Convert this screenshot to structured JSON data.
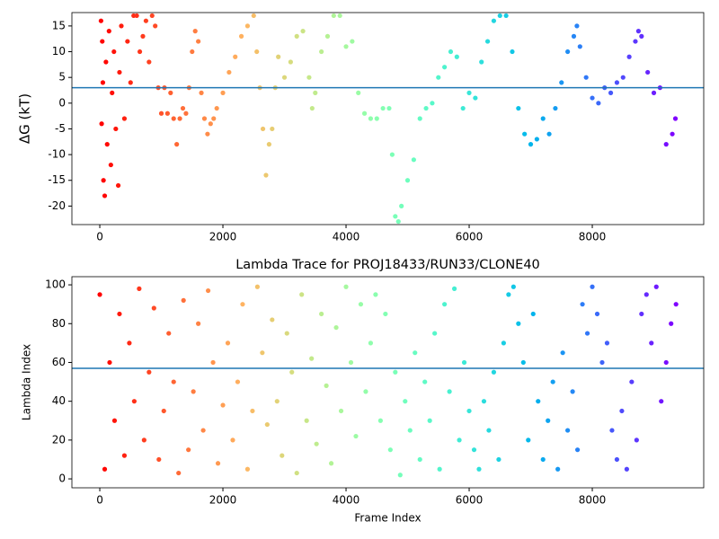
{
  "chart_data": [
    {
      "type": "scatter",
      "ylabel": "ΔG (kT)",
      "colormap": "rainbow_r",
      "hline": 3,
      "hline_color": "#1f77b4",
      "x": [
        20,
        30,
        40,
        50,
        60,
        80,
        100,
        120,
        150,
        180,
        200,
        230,
        260,
        300,
        320,
        350,
        400,
        450,
        500,
        550,
        600,
        650,
        700,
        750,
        800,
        850,
        900,
        950,
        1000,
        1050,
        1100,
        1150,
        1200,
        1250,
        1300,
        1350,
        1400,
        1450,
        1500,
        1550,
        1600,
        1650,
        1700,
        1750,
        1800,
        1850,
        1900,
        2000,
        2100,
        2200,
        2300,
        2400,
        2500,
        2550,
        2600,
        2650,
        2700,
        2750,
        2800,
        2850,
        2900,
        3000,
        3100,
        3200,
        3300,
        3400,
        3450,
        3500,
        3600,
        3700,
        3800,
        3900,
        4000,
        4100,
        4200,
        4300,
        4400,
        4500,
        4600,
        4700,
        4750,
        4800,
        4850,
        4900,
        5000,
        5100,
        5200,
        5300,
        5400,
        5500,
        5600,
        5700,
        5800,
        5900,
        6000,
        6100,
        6200,
        6300,
        6400,
        6500,
        6600,
        6700,
        6800,
        6900,
        7000,
        7100,
        7200,
        7300,
        7400,
        7500,
        7600,
        7700,
        7750,
        7800,
        7900,
        8000,
        8100,
        8200,
        8300,
        8400,
        8500,
        8600,
        8700,
        8750,
        8800,
        8900,
        9000,
        9100,
        9200,
        9300,
        9350
      ],
      "values": [
        16,
        -4,
        12,
        4,
        -15,
        -18,
        8,
        -8,
        14,
        -12,
        2,
        10,
        -5,
        -16,
        6,
        15,
        -3,
        12,
        4,
        17,
        17,
        10,
        13,
        16,
        8,
        17,
        15,
        3,
        -2,
        3,
        -2,
        2,
        -3,
        -8,
        -3,
        -1,
        -2,
        3,
        10,
        14,
        12,
        2,
        -3,
        -6,
        -4,
        -3,
        -1,
        2,
        6,
        9,
        13,
        15,
        17,
        10,
        3,
        -5,
        -14,
        -8,
        -5,
        3,
        9,
        5,
        8,
        13,
        14,
        5,
        -1,
        2,
        10,
        13,
        17,
        17,
        11,
        12,
        2,
        -2,
        -3,
        -3,
        -1,
        -1,
        -10,
        -22,
        -23,
        -20,
        -15,
        -11,
        -3,
        -1,
        0,
        5,
        7,
        10,
        9,
        -1,
        2,
        1,
        8,
        12,
        16,
        17,
        17,
        10,
        -1,
        -6,
        -8,
        -7,
        -3,
        -6,
        -1,
        4,
        10,
        13,
        15,
        11,
        5,
        1,
        0,
        3,
        2,
        4,
        5,
        9,
        12,
        14,
        13,
        6,
        2,
        3,
        -8,
        -6,
        -3
      ],
      "xlim": [
        -453,
        9810
      ],
      "xticks": [
        0,
        2000,
        4000,
        6000,
        8000
      ],
      "ylim": [
        -23.6,
        17.6
      ],
      "yticks": [
        -20,
        -15,
        -10,
        -5,
        0,
        5,
        10,
        15
      ]
    },
    {
      "type": "scatter",
      "title": "Lambda Trace for PROJ18433/RUN33/CLONE40",
      "xlabel": "Frame Index",
      "ylabel": "Lambda Index",
      "colormap": "rainbow_r",
      "hline": 57,
      "hline_color": "#1f77b4",
      "x": [
        0,
        80,
        160,
        240,
        320,
        400,
        480,
        560,
        640,
        720,
        800,
        880,
        960,
        1040,
        1120,
        1200,
        1280,
        1360,
        1440,
        1520,
        1600,
        1680,
        1760,
        1840,
        1920,
        2000,
        2080,
        2160,
        2240,
        2320,
        2400,
        2480,
        2560,
        2640,
        2720,
        2800,
        2880,
        2960,
        3040,
        3120,
        3200,
        3280,
        3360,
        3440,
        3520,
        3600,
        3680,
        3760,
        3840,
        3920,
        4000,
        4080,
        4160,
        4240,
        4320,
        4400,
        4480,
        4560,
        4640,
        4720,
        4800,
        4880,
        4960,
        5040,
        5120,
        5200,
        5280,
        5360,
        5440,
        5520,
        5600,
        5680,
        5760,
        5840,
        5920,
        6000,
        6080,
        6160,
        6240,
        6320,
        6400,
        6480,
        6560,
        6640,
        6720,
        6800,
        6880,
        6960,
        7040,
        7120,
        7200,
        7280,
        7360,
        7440,
        7520,
        7600,
        7680,
        7760,
        7840,
        7920,
        8000,
        8080,
        8160,
        8240,
        8320,
        8400,
        8480,
        8560,
        8640,
        8720,
        8800,
        8880,
        8960,
        9040,
        9120,
        9200,
        9280,
        9360
      ],
      "values": [
        95,
        5,
        60,
        30,
        85,
        12,
        70,
        40,
        98,
        20,
        55,
        88,
        10,
        35,
        75,
        50,
        3,
        92,
        15,
        45,
        80,
        25,
        97,
        60,
        8,
        38,
        70,
        20,
        50,
        90,
        5,
        35,
        99,
        65,
        28,
        82,
        40,
        12,
        75,
        55,
        3,
        95,
        30,
        62,
        18,
        85,
        48,
        8,
        78,
        35,
        99,
        60,
        22,
        90,
        45,
        70,
        95,
        30,
        85,
        15,
        55,
        2,
        40,
        25,
        65,
        10,
        50,
        30,
        75,
        5,
        90,
        45,
        98,
        20,
        60,
        35,
        15,
        5,
        40,
        25,
        55,
        10,
        70,
        95,
        99,
        80,
        60,
        20,
        85,
        40,
        10,
        30,
        50,
        5,
        65,
        25,
        45,
        15,
        90,
        75,
        99,
        85,
        60,
        70,
        25,
        10,
        35,
        5,
        50,
        20,
        85,
        95,
        70,
        99,
        40,
        60,
        80,
        90
      ],
      "xlim": [
        -453,
        9810
      ],
      "xticks": [
        0,
        2000,
        4000,
        6000,
        8000
      ],
      "ylim": [
        -4.6,
        104.2
      ],
      "yticks": [
        0,
        20,
        40,
        60,
        80,
        100
      ]
    }
  ]
}
